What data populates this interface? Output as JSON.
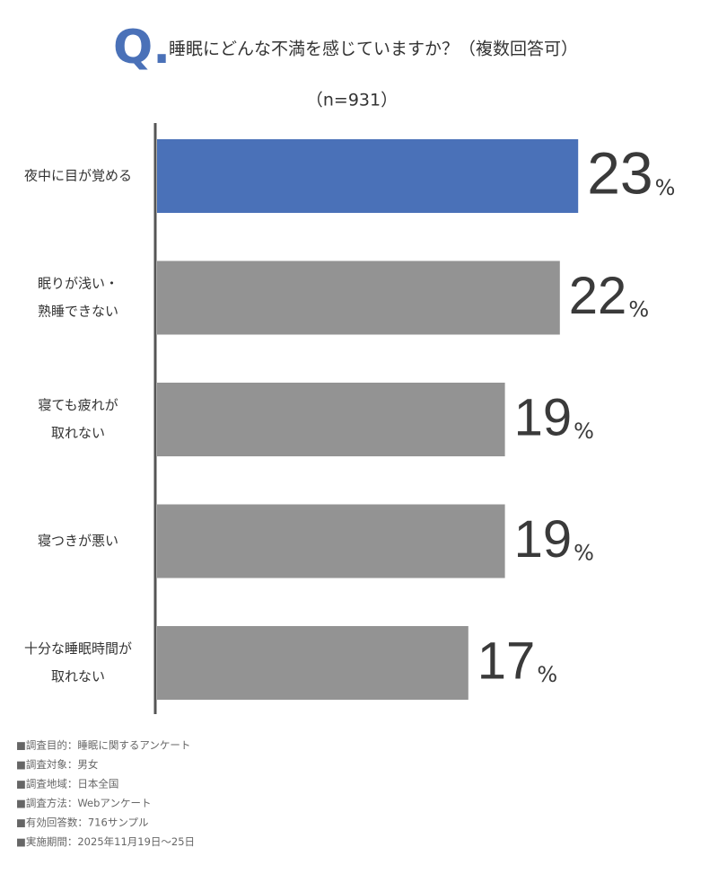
{
  "chart_data": {
    "type": "hbar",
    "title_prefix": "Q.",
    "title": "睡眠にどんな不満を感じていますか？（複数回答可）",
    "subtitle": "（n=931）",
    "categories": [
      [
        "夜中に目が覚める"
      ],
      [
        "眠りが浅い・",
        "熟睡できない"
      ],
      [
        "寝ても疲れが",
        "取れない"
      ],
      [
        "寝つきが悪い"
      ],
      [
        "十分な睡眠時間が",
        "取れない"
      ]
    ],
    "values": [
      23,
      22,
      19,
      19,
      17
    ],
    "value_unit": "%",
    "colors": [
      "#4a71b8",
      "#939393",
      "#939393",
      "#939393",
      "#939393"
    ],
    "xlim": [
      0,
      30
    ],
    "notes": [
      "■調査目的：睡眠に関するアンケート",
      "■調査対象：男女",
      "■調査地域：日本全国",
      "■調査方法：Webアンケート",
      "■有効回答数：716サンプル",
      "■実施期間：2025年11月19日～25日"
    ]
  }
}
